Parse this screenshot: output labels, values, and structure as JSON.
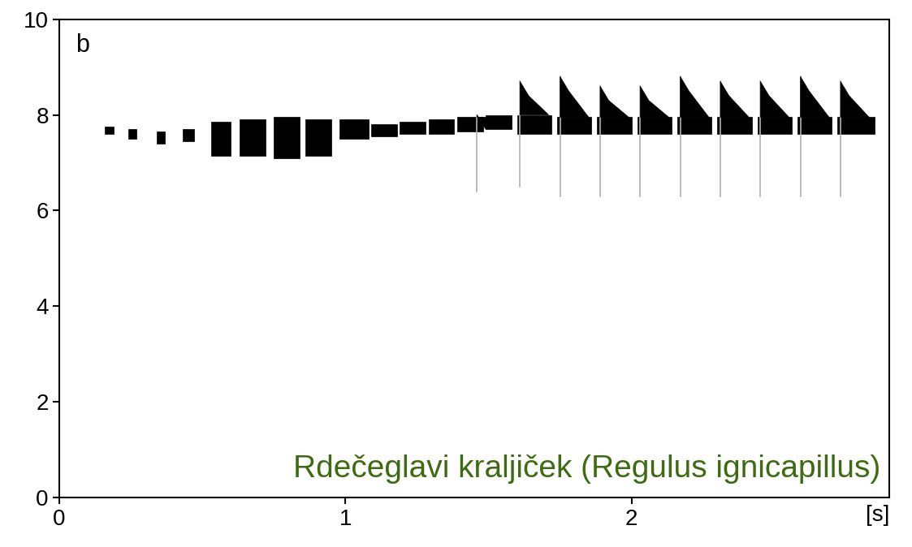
{
  "chart_data": {
    "type": "spectrogram",
    "panel_label": "b",
    "annotation": "Rdečeglavi kraljiček (Regulus ignicapillus)",
    "annotation_color": "#3d6b12",
    "x_label": "[s]",
    "xlim": [
      0,
      2.9
    ],
    "xticks": [
      0,
      1,
      2
    ],
    "ylim": [
      0,
      10
    ],
    "yticks": [
      0,
      2,
      4,
      6,
      8,
      10
    ],
    "color": "#000000",
    "notes": [
      {
        "start": 0.16,
        "end": 0.19,
        "low": 7.6,
        "high": 7.75
      },
      {
        "start": 0.24,
        "end": 0.27,
        "low": 7.5,
        "high": 7.7
      },
      {
        "start": 0.34,
        "end": 0.37,
        "low": 7.4,
        "high": 7.65
      },
      {
        "start": 0.43,
        "end": 0.47,
        "low": 7.45,
        "high": 7.7
      },
      {
        "start": 0.53,
        "end": 0.6,
        "low": 7.15,
        "high": 7.85
      },
      {
        "start": 0.63,
        "end": 0.72,
        "low": 7.15,
        "high": 7.9
      },
      {
        "start": 0.75,
        "end": 0.84,
        "low": 7.1,
        "high": 7.95
      },
      {
        "start": 0.86,
        "end": 0.95,
        "low": 7.15,
        "high": 7.9
      },
      {
        "start": 0.98,
        "end": 1.08,
        "low": 7.5,
        "high": 7.9
      },
      {
        "start": 1.09,
        "end": 1.18,
        "low": 7.55,
        "high": 7.8
      },
      {
        "start": 1.19,
        "end": 1.28,
        "low": 7.6,
        "high": 7.85
      },
      {
        "start": 1.29,
        "end": 1.38,
        "low": 7.6,
        "high": 7.9
      },
      {
        "start": 1.39,
        "end": 1.48,
        "low": 7.65,
        "high": 7.95
      },
      {
        "start": 1.49,
        "end": 1.58,
        "low": 7.7,
        "high": 8.0
      },
      {
        "start": 1.6,
        "end": 1.72,
        "low": 7.6,
        "high": 8.0
      },
      {
        "start": 1.74,
        "end": 1.86,
        "low": 7.6,
        "high": 7.95
      },
      {
        "start": 1.88,
        "end": 2.0,
        "low": 7.6,
        "high": 7.95
      },
      {
        "start": 2.02,
        "end": 2.14,
        "low": 7.6,
        "high": 7.95
      },
      {
        "start": 2.16,
        "end": 2.28,
        "low": 7.6,
        "high": 7.95
      },
      {
        "start": 2.3,
        "end": 2.42,
        "low": 7.6,
        "high": 7.95
      },
      {
        "start": 2.44,
        "end": 2.56,
        "low": 7.6,
        "high": 7.95
      },
      {
        "start": 2.58,
        "end": 2.7,
        "low": 7.6,
        "high": 7.95
      },
      {
        "start": 2.72,
        "end": 2.85,
        "low": 7.6,
        "high": 7.95
      }
    ],
    "spikes": {
      "color": "#b0b0b0",
      "time": [
        1.46,
        1.61,
        1.75,
        1.89,
        2.03,
        2.17,
        2.31,
        2.45,
        2.59,
        2.73
      ],
      "peak": [
        8.0,
        8.7,
        8.8,
        8.6,
        8.6,
        8.8,
        8.7,
        8.7,
        8.8,
        8.7
      ],
      "low": [
        6.4,
        6.5,
        6.3,
        6.3,
        6.3,
        6.3,
        6.3,
        6.3,
        6.3,
        6.3
      ]
    }
  }
}
